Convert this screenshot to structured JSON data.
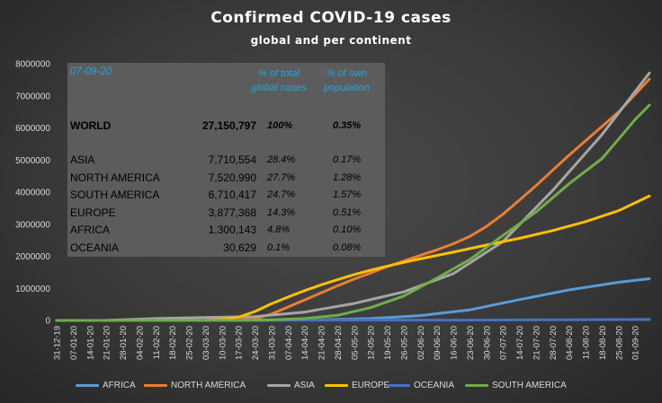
{
  "title": "Confirmed  COVID-19  cases",
  "subtitle": "global and per continent",
  "table": {
    "date": "07-09-20",
    "header_pct_total": [
      "% of total",
      "global cases"
    ],
    "header_pct_pop": [
      "% of own",
      "population"
    ],
    "world": {
      "name": "WORLD",
      "cases": "27,150,797",
      "pct_total": "100%",
      "pct_pop": "0.35%"
    },
    "rows": [
      {
        "name": "ASIA",
        "cases": "7,710,554",
        "pct_total": "28.4%",
        "pct_pop": "0.17%"
      },
      {
        "name": "NORTH AMERICA",
        "cases": "7,520,990",
        "pct_total": "27.7%",
        "pct_pop": "1.28%"
      },
      {
        "name": "SOUTH AMERICA",
        "cases": "6,710,417",
        "pct_total": "24.7%",
        "pct_pop": "1.57%"
      },
      {
        "name": "EUROPE",
        "cases": "3,877,368",
        "pct_total": "14.3%",
        "pct_pop": "0.51%"
      },
      {
        "name": "AFRICA",
        "cases": "1,300,143",
        "pct_total": "4.8%",
        "pct_pop": "0.10%"
      },
      {
        "name": "OCEANIA",
        "cases": "30,629",
        "pct_total": "0.1%",
        "pct_pop": "0.08%"
      }
    ]
  },
  "chart_data": {
    "type": "line",
    "title": "Confirmed  COVID-19  cases",
    "subtitle": "global and per continent",
    "ylim": [
      0,
      8000000
    ],
    "yticks": [
      0,
      1000000,
      2000000,
      3000000,
      4000000,
      5000000,
      6000000,
      7000000,
      8000000
    ],
    "yticklabels": [
      "0",
      "1000000",
      "2000000",
      "3000000",
      "4000000",
      "5000000",
      "6000000",
      "7000000",
      "8000000"
    ],
    "xticklabels": [
      "31-12-19",
      "07-01-20",
      "14-01-20",
      "21-01-20",
      "28-01-20",
      "04-02-20",
      "11-02-20",
      "18-02-20",
      "25-02-20",
      "03-03-20",
      "10-03-20",
      "17-03-20",
      "24-03-20",
      "31-03-20",
      "07-04-20",
      "14-04-20",
      "21-04-20",
      "28-04-20",
      "05-05-20",
      "12-05-20",
      "19-05-20",
      "26-05-20",
      "02-06-20",
      "09-06-20",
      "16-06-20",
      "23-06-20",
      "30-06-20",
      "07-07-20",
      "14-07-20",
      "21-07-20",
      "28-07-20",
      "04-08-20",
      "11-08-20",
      "18-08-20",
      "25-08-20",
      "01-09-20"
    ],
    "x_end": "07-09-20",
    "grid": false,
    "legend_position": "bottom",
    "series": [
      {
        "name": "AFRICA",
        "color": "#5b9bd5",
        "x": [
          "31-12-19",
          "10-03-20",
          "31-03-20",
          "21-04-20",
          "12-05-20",
          "02-06-20",
          "23-06-20",
          "14-07-20",
          "04-08-20",
          "25-08-20",
          "07-09-20"
        ],
        "y": [
          0,
          0,
          5000,
          20000,
          60000,
          150000,
          330000,
          650000,
          950000,
          1190000,
          1300143
        ]
      },
      {
        "name": "NORTH AMERICA",
        "color": "#ed7d31",
        "x": [
          "31-12-19",
          "10-03-20",
          "17-03-20",
          "24-03-20",
          "31-03-20",
          "07-04-20",
          "14-04-20",
          "21-04-20",
          "28-04-20",
          "05-05-20",
          "12-05-20",
          "19-05-20",
          "26-05-20",
          "02-06-20",
          "09-06-20",
          "16-06-20",
          "23-06-20",
          "30-06-20",
          "07-07-20",
          "14-07-20",
          "21-07-20",
          "28-07-20",
          "04-08-20",
          "11-08-20",
          "18-08-20",
          "25-08-20",
          "01-09-20",
          "07-09-20"
        ],
        "y": [
          0,
          1000,
          10000,
          60000,
          200000,
          420000,
          640000,
          860000,
          1080000,
          1290000,
          1480000,
          1680000,
          1850000,
          2030000,
          2200000,
          2390000,
          2620000,
          2930000,
          3310000,
          3750000,
          4200000,
          4680000,
          5150000,
          5600000,
          6050000,
          6500000,
          7050000,
          7520990
        ]
      },
      {
        "name": "ASIA",
        "color": "#a5a5a5",
        "x": [
          "31-12-19",
          "21-01-20",
          "11-02-20",
          "03-03-20",
          "24-03-20",
          "14-04-20",
          "05-05-20",
          "26-05-20",
          "16-06-20",
          "07-07-20",
          "28-07-20",
          "18-08-20",
          "07-09-20"
        ],
        "y": [
          0,
          2000,
          60000,
          90000,
          120000,
          260000,
          530000,
          890000,
          1460000,
          2460000,
          4050000,
          5800000,
          7710554
        ]
      },
      {
        "name": "EUROPE",
        "color": "#ffc000",
        "x": [
          "31-12-19",
          "18-02-20",
          "03-03-20",
          "10-03-20",
          "17-03-20",
          "24-03-20",
          "31-03-20",
          "07-04-20",
          "14-04-20",
          "21-04-20",
          "28-04-20",
          "05-05-20",
          "12-05-20",
          "19-05-20",
          "26-05-20",
          "02-06-20",
          "16-06-20",
          "30-06-20",
          "14-07-20",
          "28-07-20",
          "11-08-20",
          "25-08-20",
          "07-09-20"
        ],
        "y": [
          0,
          100,
          3000,
          30000,
          100000,
          280000,
          520000,
          730000,
          930000,
          1110000,
          1270000,
          1430000,
          1570000,
          1690000,
          1810000,
          1920000,
          2130000,
          2350000,
          2560000,
          2800000,
          3080000,
          3420000,
          3877368
        ]
      },
      {
        "name": "OCEANIA",
        "color": "#4472c4",
        "x": [
          "31-12-19",
          "17-03-20",
          "07-04-20",
          "30-06-20",
          "28-07-20",
          "07-09-20"
        ],
        "y": [
          0,
          1000,
          7000,
          10000,
          20000,
          30629
        ]
      },
      {
        "name": "SOUTH AMERICA",
        "color": "#70ad47",
        "x": [
          "31-12-19",
          "17-03-20",
          "31-03-20",
          "14-04-20",
          "28-04-20",
          "12-05-20",
          "26-05-20",
          "09-06-20",
          "23-06-20",
          "07-07-20",
          "21-07-20",
          "04-08-20",
          "18-08-20",
          "01-09-20",
          "07-09-20"
        ],
        "y": [
          0,
          3000,
          20000,
          60000,
          160000,
          400000,
          760000,
          1320000,
          1900000,
          2650000,
          3380000,
          4260000,
          5050000,
          6260000,
          6710417
        ]
      }
    ]
  }
}
